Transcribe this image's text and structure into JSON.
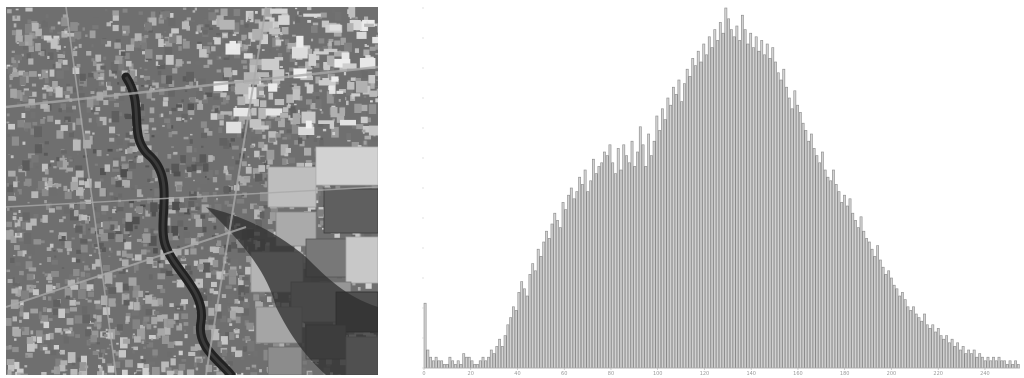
{
  "image": {
    "description": "grayscale aerial photograph",
    "palette": {
      "dark": "#2e2e2e",
      "mid": "#6f6f6f",
      "light": "#a9a9a9",
      "bright": "#d8d8d8"
    }
  },
  "chart_data": {
    "type": "bar",
    "title": "",
    "xlabel": "",
    "ylabel": "",
    "x_ticks": [
      "0",
      "20",
      "40",
      "60",
      "80",
      "100",
      "120",
      "140",
      "160",
      "180",
      "200",
      "220",
      "240"
    ],
    "xlim": [
      0,
      255
    ],
    "ylim": [
      0,
      100
    ],
    "grid": false,
    "bar_fill": "#d2d2d2",
    "bar_stroke": "#8a8a8a",
    "values": [
      18,
      5,
      3,
      2,
      3,
      2,
      2,
      1,
      1,
      3,
      2,
      1,
      2,
      1,
      4,
      3,
      3,
      2,
      1,
      1,
      2,
      3,
      2,
      3,
      5,
      4,
      6,
      8,
      6,
      9,
      12,
      14,
      17,
      16,
      21,
      24,
      22,
      20,
      26,
      29,
      27,
      33,
      31,
      35,
      38,
      36,
      40,
      43,
      41,
      39,
      46,
      44,
      48,
      50,
      47,
      49,
      53,
      51,
      55,
      49,
      52,
      58,
      54,
      56,
      57,
      60,
      59,
      62,
      57,
      54,
      61,
      55,
      62,
      59,
      57,
      63,
      56,
      60,
      67,
      62,
      56,
      65,
      59,
      63,
      70,
      66,
      72,
      69,
      75,
      73,
      78,
      76,
      80,
      74,
      79,
      83,
      81,
      86,
      84,
      88,
      85,
      90,
      87,
      92,
      89,
      94,
      91,
      96,
      93,
      100,
      97,
      94,
      92,
      95,
      91,
      98,
      94,
      90,
      93,
      89,
      92,
      88,
      91,
      87,
      90,
      86,
      89,
      85,
      82,
      80,
      83,
      78,
      75,
      72,
      77,
      73,
      71,
      68,
      66,
      63,
      65,
      61,
      59,
      57,
      60,
      55,
      53,
      52,
      55,
      51,
      49,
      46,
      48,
      45,
      47,
      43,
      41,
      39,
      42,
      38,
      36,
      35,
      33,
      31,
      34,
      30,
      28,
      26,
      27,
      25,
      23,
      22,
      20,
      21,
      19,
      17,
      16,
      17,
      15,
      14,
      13,
      15,
      12,
      11,
      12,
      10,
      11,
      9,
      8,
      9,
      7,
      8,
      6,
      7,
      5,
      6,
      4,
      5,
      4,
      5,
      3,
      4,
      3,
      2,
      3,
      2,
      3,
      2,
      3,
      2,
      2,
      1,
      2,
      1,
      2,
      1
    ]
  }
}
